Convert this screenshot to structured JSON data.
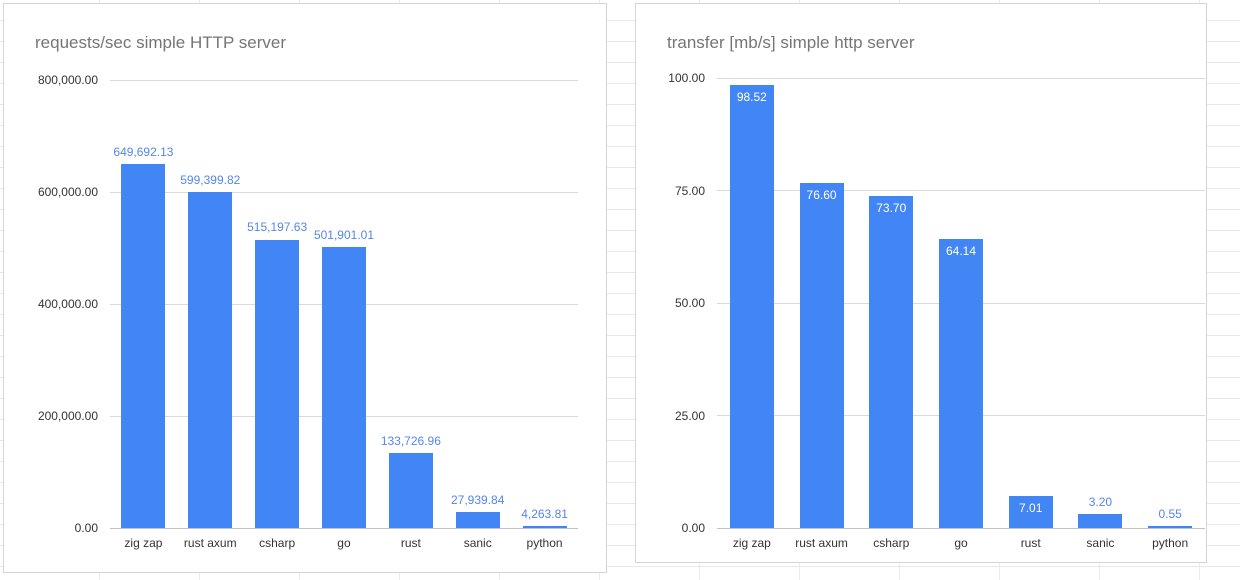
{
  "chart_data": [
    {
      "type": "bar",
      "title": "requests/sec simple HTTP server",
      "categories": [
        "zig zap",
        "rust axum",
        "csharp",
        "go",
        "rust",
        "sanic",
        "python"
      ],
      "values": [
        649692.13,
        599399.82,
        515197.63,
        501901.01,
        133726.96,
        27939.84,
        4263.81
      ],
      "value_labels": [
        "649,692.13",
        "599,399.82",
        "515,197.63",
        "501,901.01",
        "133,726.96",
        "27,939.84",
        "4,263.81"
      ],
      "xlabel": "",
      "ylabel": "",
      "ylim": [
        0,
        800000
      ],
      "ytick_values": [
        0,
        200000,
        400000,
        600000,
        800000
      ],
      "ytick_labels": [
        "0.00",
        "200,000.00",
        "400,000.00",
        "600,000.00",
        "800,000.00"
      ],
      "grid": true,
      "legend": "none",
      "bar_color": "#4285f4",
      "label_color": "#5586ec",
      "labels_inside": false
    },
    {
      "type": "bar",
      "title": "transfer [mb/s] simple http server",
      "categories": [
        "zig zap",
        "rust axum",
        "csharp",
        "go",
        "rust",
        "sanic",
        "python"
      ],
      "values": [
        98.52,
        76.6,
        73.7,
        64.14,
        7.01,
        3.2,
        0.55
      ],
      "value_labels": [
        "98.52",
        "76.60",
        "73.70",
        "64.14",
        "7.01",
        "3.20",
        "0.55"
      ],
      "xlabel": "",
      "ylabel": "",
      "ylim": [
        0,
        100
      ],
      "ytick_values": [
        0,
        25,
        50,
        75,
        100
      ],
      "ytick_labels": [
        "0.00",
        "25.00",
        "50.00",
        "75.00",
        "100.00"
      ],
      "grid": true,
      "legend": "none",
      "bar_color": "#4285f4",
      "label_color": "#5586ec",
      "labels_inside": true,
      "inside_label_color": "#ffffff"
    }
  ]
}
